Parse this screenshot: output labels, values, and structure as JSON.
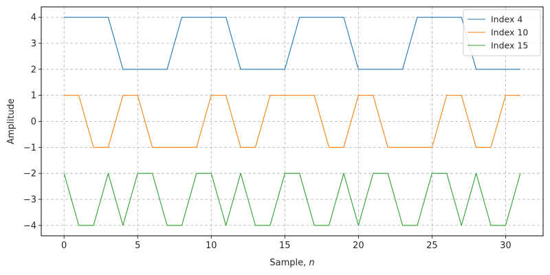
{
  "chart_data": {
    "type": "line",
    "title": "",
    "xlabel": "Sample,",
    "xlabel_var": "n",
    "ylabel": "Amplitude",
    "xlim": [
      -1.55,
      32.55
    ],
    "ylim": [
      -4.4,
      4.4
    ],
    "xticks": [
      0,
      5,
      10,
      15,
      20,
      25,
      30
    ],
    "yticks": [
      -4,
      -3,
      -2,
      -1,
      0,
      1,
      2,
      3,
      4
    ],
    "grid": true,
    "grid_style": "dashed",
    "legend_position": "top-right",
    "x": [
      0,
      1,
      2,
      3,
      4,
      5,
      6,
      7,
      8,
      9,
      10,
      11,
      12,
      13,
      14,
      15,
      16,
      17,
      18,
      19,
      20,
      21,
      22,
      23,
      24,
      25,
      26,
      27,
      28,
      29,
      30,
      31
    ],
    "series": [
      {
        "name": "Index 4",
        "color": "#1f77b4",
        "values": [
          4,
          4,
          4,
          4,
          2,
          2,
          2,
          2,
          4,
          4,
          4,
          4,
          2,
          2,
          2,
          2,
          4,
          4,
          4,
          4,
          2,
          2,
          2,
          2,
          4,
          4,
          4,
          4,
          2,
          2,
          2,
          2
        ]
      },
      {
        "name": "Index 10",
        "color": "#ff7f0e",
        "values": [
          1,
          1,
          -1,
          -1,
          1,
          1,
          -1,
          -1,
          -1,
          -1,
          1,
          1,
          -1,
          -1,
          1,
          1,
          1,
          1,
          -1,
          -1,
          1,
          1,
          -1,
          -1,
          -1,
          -1,
          1,
          1,
          -1,
          -1,
          1,
          1
        ]
      },
      {
        "name": "Index 15",
        "color": "#2ca02c",
        "values": [
          -2,
          -4,
          -4,
          -2,
          -4,
          -2,
          -2,
          -4,
          -4,
          -2,
          -2,
          -4,
          -2,
          -4,
          -4,
          -2,
          -2,
          -4,
          -4,
          -2,
          -4,
          -2,
          -2,
          -4,
          -4,
          -2,
          -2,
          -4,
          -2,
          -4,
          -4,
          -2
        ]
      }
    ]
  }
}
